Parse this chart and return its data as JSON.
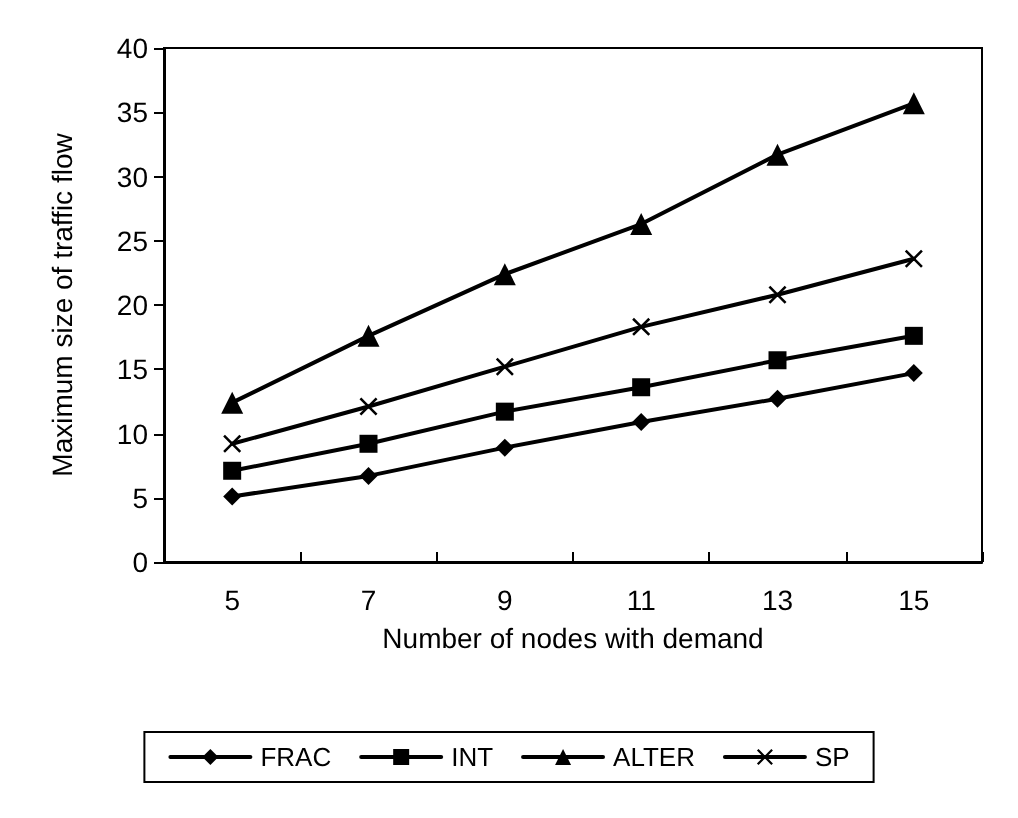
{
  "chart_data": {
    "type": "line",
    "xlabel": "Number of nodes with demand",
    "ylabel": "Maximum size of traffic flow",
    "categories": [
      "5",
      "7",
      "9",
      "11",
      "13",
      "15"
    ],
    "series": [
      {
        "name": "FRAC",
        "color": "#000000",
        "marker": "diamond",
        "values": [
          5.1,
          6.7,
          8.9,
          10.9,
          12.7,
          14.7
        ]
      },
      {
        "name": "INT",
        "color": "#000000",
        "marker": "square",
        "values": [
          7.1,
          9.2,
          11.7,
          13.6,
          15.7,
          17.6
        ]
      },
      {
        "name": "ALTER",
        "color": "#000000",
        "marker": "triangle",
        "values": [
          12.4,
          17.6,
          22.4,
          26.3,
          31.7,
          35.7
        ]
      },
      {
        "name": "SP",
        "color": "#000000",
        "marker": "cross",
        "values": [
          9.2,
          12.1,
          15.2,
          18.3,
          20.8,
          23.6
        ]
      }
    ],
    "ylim": [
      0,
      40
    ],
    "yticks": [
      0,
      5,
      10,
      15,
      20,
      25,
      30,
      35,
      40
    ],
    "grid": false,
    "legend": "bottom",
    "line_style": "solid"
  }
}
